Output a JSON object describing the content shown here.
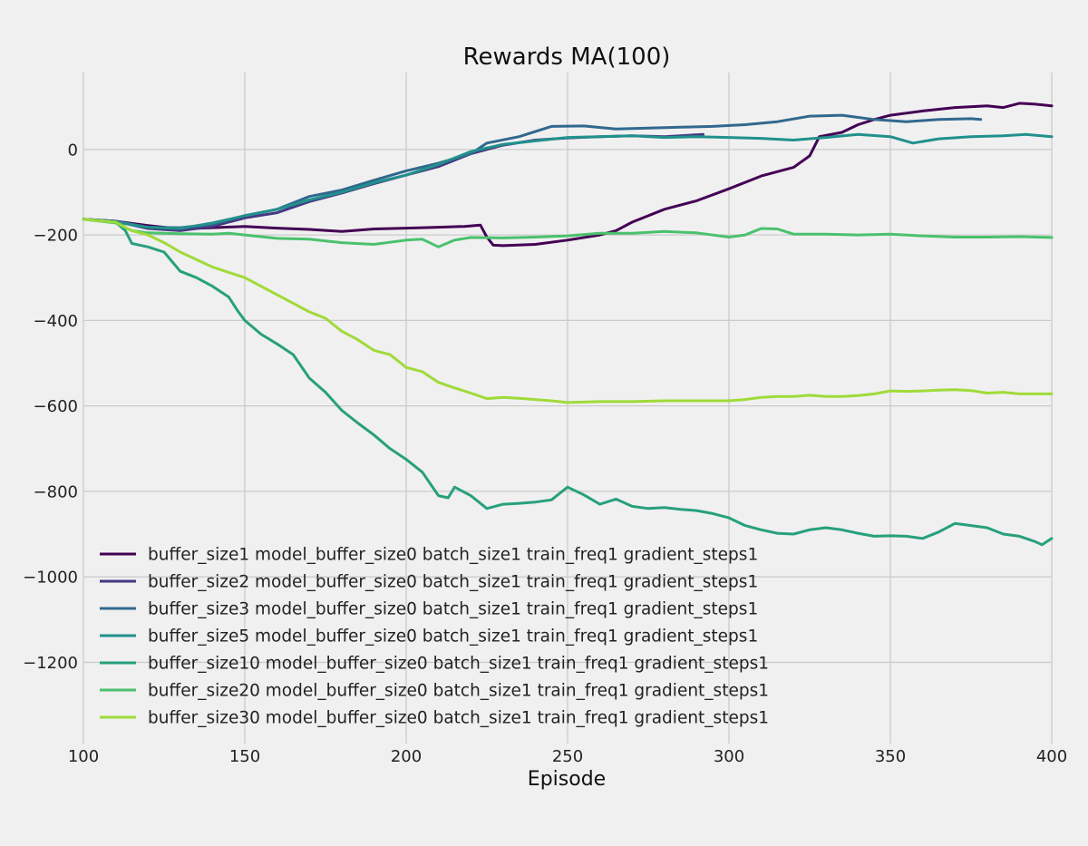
{
  "chart_data": {
    "type": "line",
    "title": "Rewards MA(100)",
    "xlabel": "Episode",
    "ylabel": "",
    "xlim": [
      100,
      400
    ],
    "ylim": [
      -1390,
      180
    ],
    "xticks": [
      100,
      150,
      200,
      250,
      300,
      350,
      400
    ],
    "yticks": [
      0,
      -200,
      -400,
      -600,
      -800,
      -1000,
      -1200
    ],
    "xtick_labels": [
      "100",
      "150",
      "200",
      "250",
      "300",
      "350",
      "400"
    ],
    "ytick_labels": [
      "0",
      "−200",
      "−400",
      "−600",
      "−800",
      "−1000",
      "−1200"
    ],
    "grid": true,
    "legend_position": "lower-left",
    "series": [
      {
        "name": "buffer_size1 model_buffer_size0 batch_size1 train_freq1 gradient_steps1",
        "color": "#440154",
        "points": [
          [
            100,
            -163
          ],
          [
            110,
            -168
          ],
          [
            120,
            -178
          ],
          [
            130,
            -186
          ],
          [
            140,
            -183
          ],
          [
            150,
            -180
          ],
          [
            160,
            -184
          ],
          [
            170,
            -187
          ],
          [
            180,
            -192
          ],
          [
            190,
            -186
          ],
          [
            200,
            -184
          ],
          [
            210,
            -182
          ],
          [
            218,
            -180
          ],
          [
            223,
            -177
          ],
          [
            225,
            -205
          ],
          [
            227,
            -224
          ],
          [
            230,
            -225
          ],
          [
            240,
            -222
          ],
          [
            250,
            -212
          ],
          [
            260,
            -200
          ],
          [
            265,
            -190
          ],
          [
            270,
            -170
          ],
          [
            280,
            -140
          ],
          [
            290,
            -120
          ],
          [
            300,
            -92
          ],
          [
            310,
            -62
          ],
          [
            320,
            -42
          ],
          [
            325,
            -15
          ],
          [
            328,
            30
          ],
          [
            335,
            40
          ],
          [
            340,
            58
          ],
          [
            345,
            70
          ],
          [
            350,
            80
          ],
          [
            360,
            90
          ],
          [
            370,
            98
          ],
          [
            380,
            102
          ],
          [
            385,
            98
          ],
          [
            390,
            108
          ],
          [
            395,
            106
          ],
          [
            400,
            102
          ]
        ]
      },
      {
        "name": "buffer_size2 model_buffer_size0 batch_size1 train_freq1 gradient_steps1",
        "color": "#443983",
        "points": [
          [
            100,
            -163
          ],
          [
            110,
            -168
          ],
          [
            120,
            -185
          ],
          [
            130,
            -190
          ],
          [
            140,
            -180
          ],
          [
            150,
            -160
          ],
          [
            160,
            -148
          ],
          [
            170,
            -122
          ],
          [
            180,
            -102
          ],
          [
            190,
            -80
          ],
          [
            200,
            -60
          ],
          [
            210,
            -40
          ],
          [
            220,
            -10
          ],
          [
            230,
            10
          ],
          [
            240,
            22
          ],
          [
            250,
            27
          ],
          [
            260,
            30
          ],
          [
            270,
            32
          ],
          [
            280,
            30
          ],
          [
            292,
            35
          ]
        ]
      },
      {
        "name": "buffer_size3 model_buffer_size0 batch_size1 train_freq1 gradient_steps1",
        "color": "#31688e",
        "points": [
          [
            100,
            -163
          ],
          [
            110,
            -168
          ],
          [
            120,
            -182
          ],
          [
            130,
            -183
          ],
          [
            140,
            -175
          ],
          [
            150,
            -155
          ],
          [
            160,
            -140
          ],
          [
            170,
            -110
          ],
          [
            180,
            -95
          ],
          [
            190,
            -72
          ],
          [
            200,
            -50
          ],
          [
            210,
            -32
          ],
          [
            220,
            -10
          ],
          [
            225,
            15
          ],
          [
            235,
            30
          ],
          [
            245,
            54
          ],
          [
            255,
            55
          ],
          [
            265,
            48
          ],
          [
            275,
            50
          ],
          [
            285,
            52
          ],
          [
            295,
            54
          ],
          [
            305,
            58
          ],
          [
            315,
            65
          ],
          [
            325,
            78
          ],
          [
            335,
            80
          ],
          [
            345,
            70
          ],
          [
            355,
            65
          ],
          [
            365,
            70
          ],
          [
            375,
            72
          ],
          [
            378,
            70
          ]
        ]
      },
      {
        "name": "buffer_size5 model_buffer_size0 batch_size1 train_freq1 gradient_steps1",
        "color": "#21918c",
        "points": [
          [
            100,
            -163
          ],
          [
            110,
            -170
          ],
          [
            120,
            -182
          ],
          [
            130,
            -185
          ],
          [
            140,
            -172
          ],
          [
            150,
            -155
          ],
          [
            160,
            -140
          ],
          [
            170,
            -118
          ],
          [
            180,
            -100
          ],
          [
            190,
            -78
          ],
          [
            200,
            -60
          ],
          [
            210,
            -35
          ],
          [
            220,
            -5
          ],
          [
            230,
            12
          ],
          [
            240,
            20
          ],
          [
            250,
            28
          ],
          [
            260,
            30
          ],
          [
            270,
            32
          ],
          [
            280,
            28
          ],
          [
            290,
            30
          ],
          [
            300,
            28
          ],
          [
            310,
            26
          ],
          [
            320,
            22
          ],
          [
            330,
            28
          ],
          [
            340,
            35
          ],
          [
            350,
            30
          ],
          [
            357,
            15
          ],
          [
            365,
            25
          ],
          [
            375,
            30
          ],
          [
            385,
            32
          ],
          [
            392,
            35
          ],
          [
            400,
            30
          ]
        ]
      },
      {
        "name": "buffer_size10 model_buffer_size0 batch_size1 train_freq1 gradient_steps1",
        "color": "#27a07c",
        "points": [
          [
            100,
            -163
          ],
          [
            110,
            -170
          ],
          [
            113,
            -190
          ],
          [
            115,
            -220
          ],
          [
            120,
            -228
          ],
          [
            125,
            -240
          ],
          [
            130,
            -285
          ],
          [
            135,
            -300
          ],
          [
            140,
            -320
          ],
          [
            145,
            -345
          ],
          [
            148,
            -380
          ],
          [
            150,
            -400
          ],
          [
            155,
            -432
          ],
          [
            160,
            -455
          ],
          [
            165,
            -480
          ],
          [
            170,
            -535
          ],
          [
            175,
            -568
          ],
          [
            180,
            -610
          ],
          [
            185,
            -640
          ],
          [
            190,
            -668
          ],
          [
            195,
            -700
          ],
          [
            200,
            -725
          ],
          [
            205,
            -755
          ],
          [
            210,
            -810
          ],
          [
            213,
            -815
          ],
          [
            215,
            -790
          ],
          [
            220,
            -810
          ],
          [
            225,
            -840
          ],
          [
            230,
            -830
          ],
          [
            235,
            -828
          ],
          [
            240,
            -825
          ],
          [
            245,
            -820
          ],
          [
            250,
            -790
          ],
          [
            255,
            -808
          ],
          [
            260,
            -830
          ],
          [
            265,
            -818
          ],
          [
            270,
            -835
          ],
          [
            275,
            -840
          ],
          [
            280,
            -838
          ],
          [
            285,
            -842
          ],
          [
            290,
            -845
          ],
          [
            295,
            -852
          ],
          [
            300,
            -862
          ],
          [
            305,
            -880
          ],
          [
            310,
            -890
          ],
          [
            315,
            -898
          ],
          [
            320,
            -900
          ],
          [
            325,
            -890
          ],
          [
            330,
            -885
          ],
          [
            335,
            -890
          ],
          [
            340,
            -898
          ],
          [
            345,
            -905
          ],
          [
            350,
            -904
          ],
          [
            355,
            -905
          ],
          [
            360,
            -910
          ],
          [
            365,
            -895
          ],
          [
            370,
            -875
          ],
          [
            375,
            -880
          ],
          [
            380,
            -885
          ],
          [
            385,
            -900
          ],
          [
            390,
            -905
          ],
          [
            392,
            -910
          ],
          [
            395,
            -918
          ],
          [
            397,
            -925
          ],
          [
            400,
            -910
          ]
        ]
      },
      {
        "name": "buffer_size20 model_buffer_size0 batch_size1 train_freq1 gradient_steps1",
        "color": "#4ac16d",
        "points": [
          [
            100,
            -163
          ],
          [
            110,
            -172
          ],
          [
            115,
            -190
          ],
          [
            120,
            -195
          ],
          [
            130,
            -197
          ],
          [
            140,
            -198
          ],
          [
            145,
            -196
          ],
          [
            150,
            -200
          ],
          [
            160,
            -208
          ],
          [
            170,
            -210
          ],
          [
            180,
            -218
          ],
          [
            190,
            -222
          ],
          [
            200,
            -212
          ],
          [
            205,
            -210
          ],
          [
            210,
            -228
          ],
          [
            215,
            -212
          ],
          [
            220,
            -206
          ],
          [
            230,
            -207
          ],
          [
            240,
            -205
          ],
          [
            250,
            -202
          ],
          [
            260,
            -196
          ],
          [
            270,
            -196
          ],
          [
            280,
            -192
          ],
          [
            290,
            -195
          ],
          [
            300,
            -205
          ],
          [
            305,
            -200
          ],
          [
            310,
            -185
          ],
          [
            315,
            -186
          ],
          [
            320,
            -198
          ],
          [
            330,
            -198
          ],
          [
            340,
            -200
          ],
          [
            350,
            -198
          ],
          [
            360,
            -202
          ],
          [
            370,
            -205
          ],
          [
            380,
            -205
          ],
          [
            390,
            -204
          ],
          [
            400,
            -206
          ]
        ]
      },
      {
        "name": "buffer_size30 model_buffer_size0 batch_size1 train_freq1 gradient_steps1",
        "color": "#a0da39",
        "points": [
          [
            100,
            -163
          ],
          [
            110,
            -170
          ],
          [
            115,
            -190
          ],
          [
            120,
            -200
          ],
          [
            125,
            -218
          ],
          [
            130,
            -240
          ],
          [
            140,
            -275
          ],
          [
            150,
            -300
          ],
          [
            160,
            -340
          ],
          [
            170,
            -380
          ],
          [
            175,
            -395
          ],
          [
            180,
            -425
          ],
          [
            185,
            -445
          ],
          [
            190,
            -470
          ],
          [
            195,
            -480
          ],
          [
            200,
            -510
          ],
          [
            205,
            -520
          ],
          [
            210,
            -545
          ],
          [
            215,
            -558
          ],
          [
            220,
            -570
          ],
          [
            225,
            -583
          ],
          [
            230,
            -580
          ],
          [
            235,
            -582
          ],
          [
            240,
            -585
          ],
          [
            245,
            -588
          ],
          [
            250,
            -592
          ],
          [
            260,
            -590
          ],
          [
            270,
            -590
          ],
          [
            280,
            -588
          ],
          [
            290,
            -588
          ],
          [
            300,
            -588
          ],
          [
            305,
            -585
          ],
          [
            310,
            -580
          ],
          [
            315,
            -578
          ],
          [
            320,
            -578
          ],
          [
            325,
            -575
          ],
          [
            330,
            -578
          ],
          [
            335,
            -578
          ],
          [
            340,
            -576
          ],
          [
            345,
            -572
          ],
          [
            350,
            -565
          ],
          [
            355,
            -566
          ],
          [
            360,
            -565
          ],
          [
            365,
            -563
          ],
          [
            370,
            -562
          ],
          [
            375,
            -564
          ],
          [
            380,
            -570
          ],
          [
            385,
            -568
          ],
          [
            390,
            -572
          ],
          [
            395,
            -572
          ],
          [
            400,
            -572
          ]
        ]
      }
    ]
  }
}
